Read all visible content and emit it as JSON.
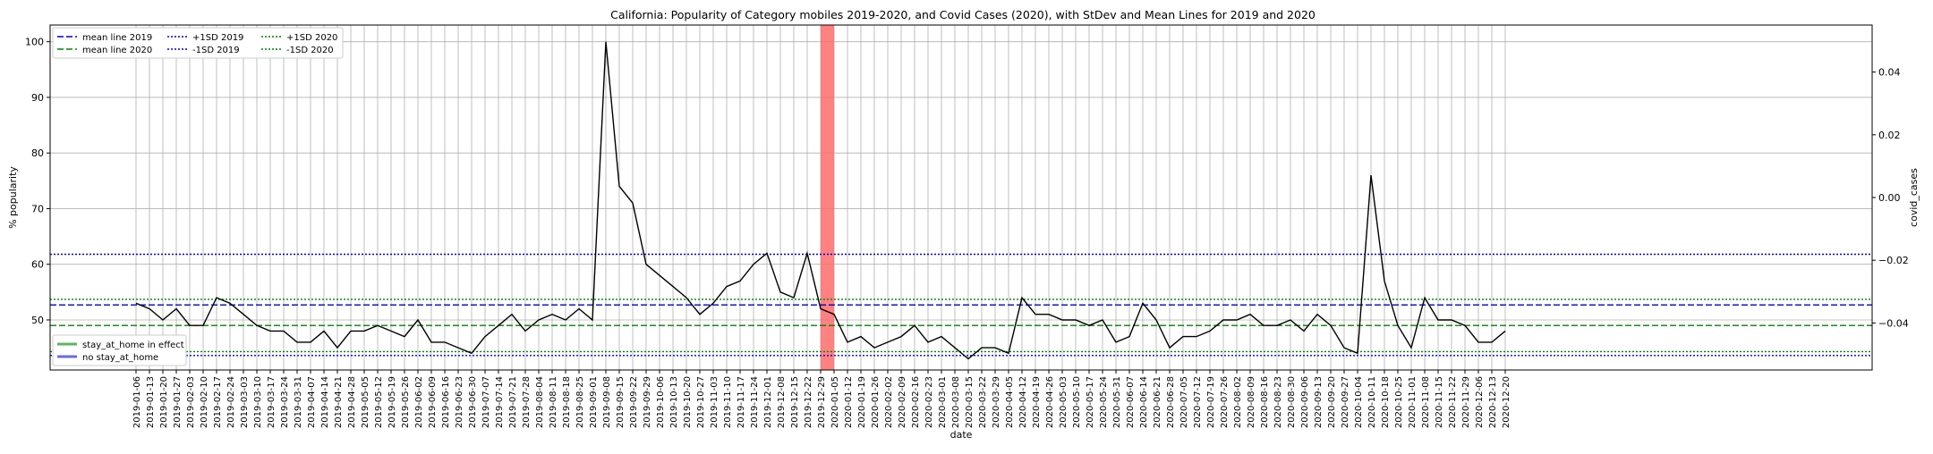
{
  "chart_data": {
    "type": "line",
    "title": "California: Popularity of Category mobiles 2019-2020, and Covid Cases (2020), with StDev and Mean Lines for 2019 and 2020",
    "xlabel": "date",
    "ylabel": "% popularity",
    "y2label": "covid_cases",
    "ylim": [
      41,
      103
    ],
    "y2lim": [
      -0.055,
      0.055
    ],
    "yticks": [
      50,
      60,
      70,
      80,
      90,
      100
    ],
    "y2ticks": [
      "−0.04",
      "−0.02",
      "0.00",
      "0.02",
      "0.04"
    ],
    "y2tick_values": [
      -0.04,
      -0.02,
      0.0,
      0.02,
      0.04
    ],
    "grid": true,
    "x": [
      "2019-01-06",
      "2019-01-13",
      "2019-01-20",
      "2019-01-27",
      "2019-02-03",
      "2019-02-10",
      "2019-02-17",
      "2019-02-24",
      "2019-03-03",
      "2019-03-10",
      "2019-03-17",
      "2019-03-24",
      "2019-03-31",
      "2019-04-07",
      "2019-04-14",
      "2019-04-21",
      "2019-04-28",
      "2019-05-05",
      "2019-05-12",
      "2019-05-19",
      "2019-05-26",
      "2019-06-02",
      "2019-06-09",
      "2019-06-16",
      "2019-06-23",
      "2019-06-30",
      "2019-07-07",
      "2019-07-14",
      "2019-07-21",
      "2019-07-28",
      "2019-08-04",
      "2019-08-11",
      "2019-08-18",
      "2019-08-25",
      "2019-09-01",
      "2019-09-08",
      "2019-09-15",
      "2019-09-22",
      "2019-09-29",
      "2019-10-06",
      "2019-10-13",
      "2019-10-20",
      "2019-10-27",
      "2019-11-03",
      "2019-11-10",
      "2019-11-17",
      "2019-11-24",
      "2019-12-01",
      "2019-12-08",
      "2019-12-15",
      "2019-12-22",
      "2019-12-29",
      "2020-01-05",
      "2020-01-12",
      "2020-01-19",
      "2020-01-26",
      "2020-02-02",
      "2020-02-09",
      "2020-02-16",
      "2020-02-23",
      "2020-03-01",
      "2020-03-08",
      "2020-03-15",
      "2020-03-22",
      "2020-03-29",
      "2020-04-05",
      "2020-04-12",
      "2020-04-19",
      "2020-04-26",
      "2020-05-03",
      "2020-05-10",
      "2020-05-17",
      "2020-05-24",
      "2020-05-31",
      "2020-06-07",
      "2020-06-14",
      "2020-06-21",
      "2020-06-28",
      "2020-07-05",
      "2020-07-12",
      "2020-07-19",
      "2020-07-26",
      "2020-08-02",
      "2020-08-09",
      "2020-08-16",
      "2020-08-23",
      "2020-08-30",
      "2020-09-06",
      "2020-09-13",
      "2020-09-20",
      "2020-09-27",
      "2020-10-04",
      "2020-10-11",
      "2020-10-18",
      "2020-10-25",
      "2020-11-01",
      "2020-11-08",
      "2020-11-15",
      "2020-11-22",
      "2020-11-29",
      "2020-12-06",
      "2020-12-13",
      "2020-12-20"
    ],
    "series": [
      {
        "name": "",
        "color": "#000000",
        "values": [
          53,
          52,
          50,
          52,
          49,
          49,
          54,
          53,
          51,
          49,
          48,
          48,
          46,
          46,
          48,
          45,
          48,
          48,
          49,
          48,
          47,
          50,
          46,
          46,
          45,
          44,
          47,
          49,
          51,
          48,
          50,
          51,
          50,
          52,
          50,
          100,
          74,
          71,
          60,
          58,
          56,
          54,
          51,
          53,
          56,
          57,
          60,
          62,
          55,
          54,
          62,
          52,
          51,
          46,
          47,
          45,
          46,
          47,
          49,
          46,
          47,
          45,
          43,
          45,
          45,
          44,
          54,
          51,
          51,
          50,
          50,
          49,
          50,
          46,
          47,
          53,
          50,
          45,
          47,
          47,
          48,
          50,
          50,
          51,
          49,
          49,
          50,
          48,
          51,
          49,
          45,
          44,
          76,
          57,
          49,
          45,
          54,
          50,
          50,
          49,
          46,
          46,
          48
        ]
      }
    ],
    "reference_lines": [
      {
        "name": "mean line 2019",
        "value": 52.7,
        "color": "#0000cc",
        "style": "dashed"
      },
      {
        "name": "mean line 2020",
        "value": 49.0,
        "color": "#008000",
        "style": "dashed"
      },
      {
        "name": "+1SD 2019",
        "value": 61.8,
        "color": "#0000cc",
        "style": "dotted"
      },
      {
        "name": "-1SD 2019",
        "value": 43.6,
        "color": "#0000cc",
        "style": "dotted"
      },
      {
        "name": "+1SD 2020",
        "value": 53.7,
        "color": "#008000",
        "style": "dotted"
      },
      {
        "name": "-1SD 2020",
        "value": 44.3,
        "color": "#008000",
        "style": "dotted"
      }
    ],
    "shaded_band": {
      "start": "2019-12-29",
      "end": "2020-01-05",
      "color": "#ff6b6b"
    },
    "legend_top": {
      "placement": "top-left",
      "items": [
        {
          "label": "mean line 2019",
          "color": "#0000cc",
          "style": "dashed"
        },
        {
          "label": "mean line 2020",
          "color": "#008000",
          "style": "dashed"
        },
        {
          "label": "+1SD 2019",
          "color": "#0000cc",
          "style": "dotted"
        },
        {
          "label": "-1SD 2019",
          "color": "#0000cc",
          "style": "dotted"
        },
        {
          "label": "+1SD 2020",
          "color": "#008000",
          "style": "dotted"
        },
        {
          "label": "-1SD 2020",
          "color": "#008000",
          "style": "dotted"
        }
      ]
    },
    "legend_bottom": {
      "placement": "bottom-left",
      "items": [
        {
          "label": "stay_at_home in effect",
          "color": "#5fb55f"
        },
        {
          "label": "no stay_at_home",
          "color": "#6a6ae6"
        }
      ]
    }
  }
}
